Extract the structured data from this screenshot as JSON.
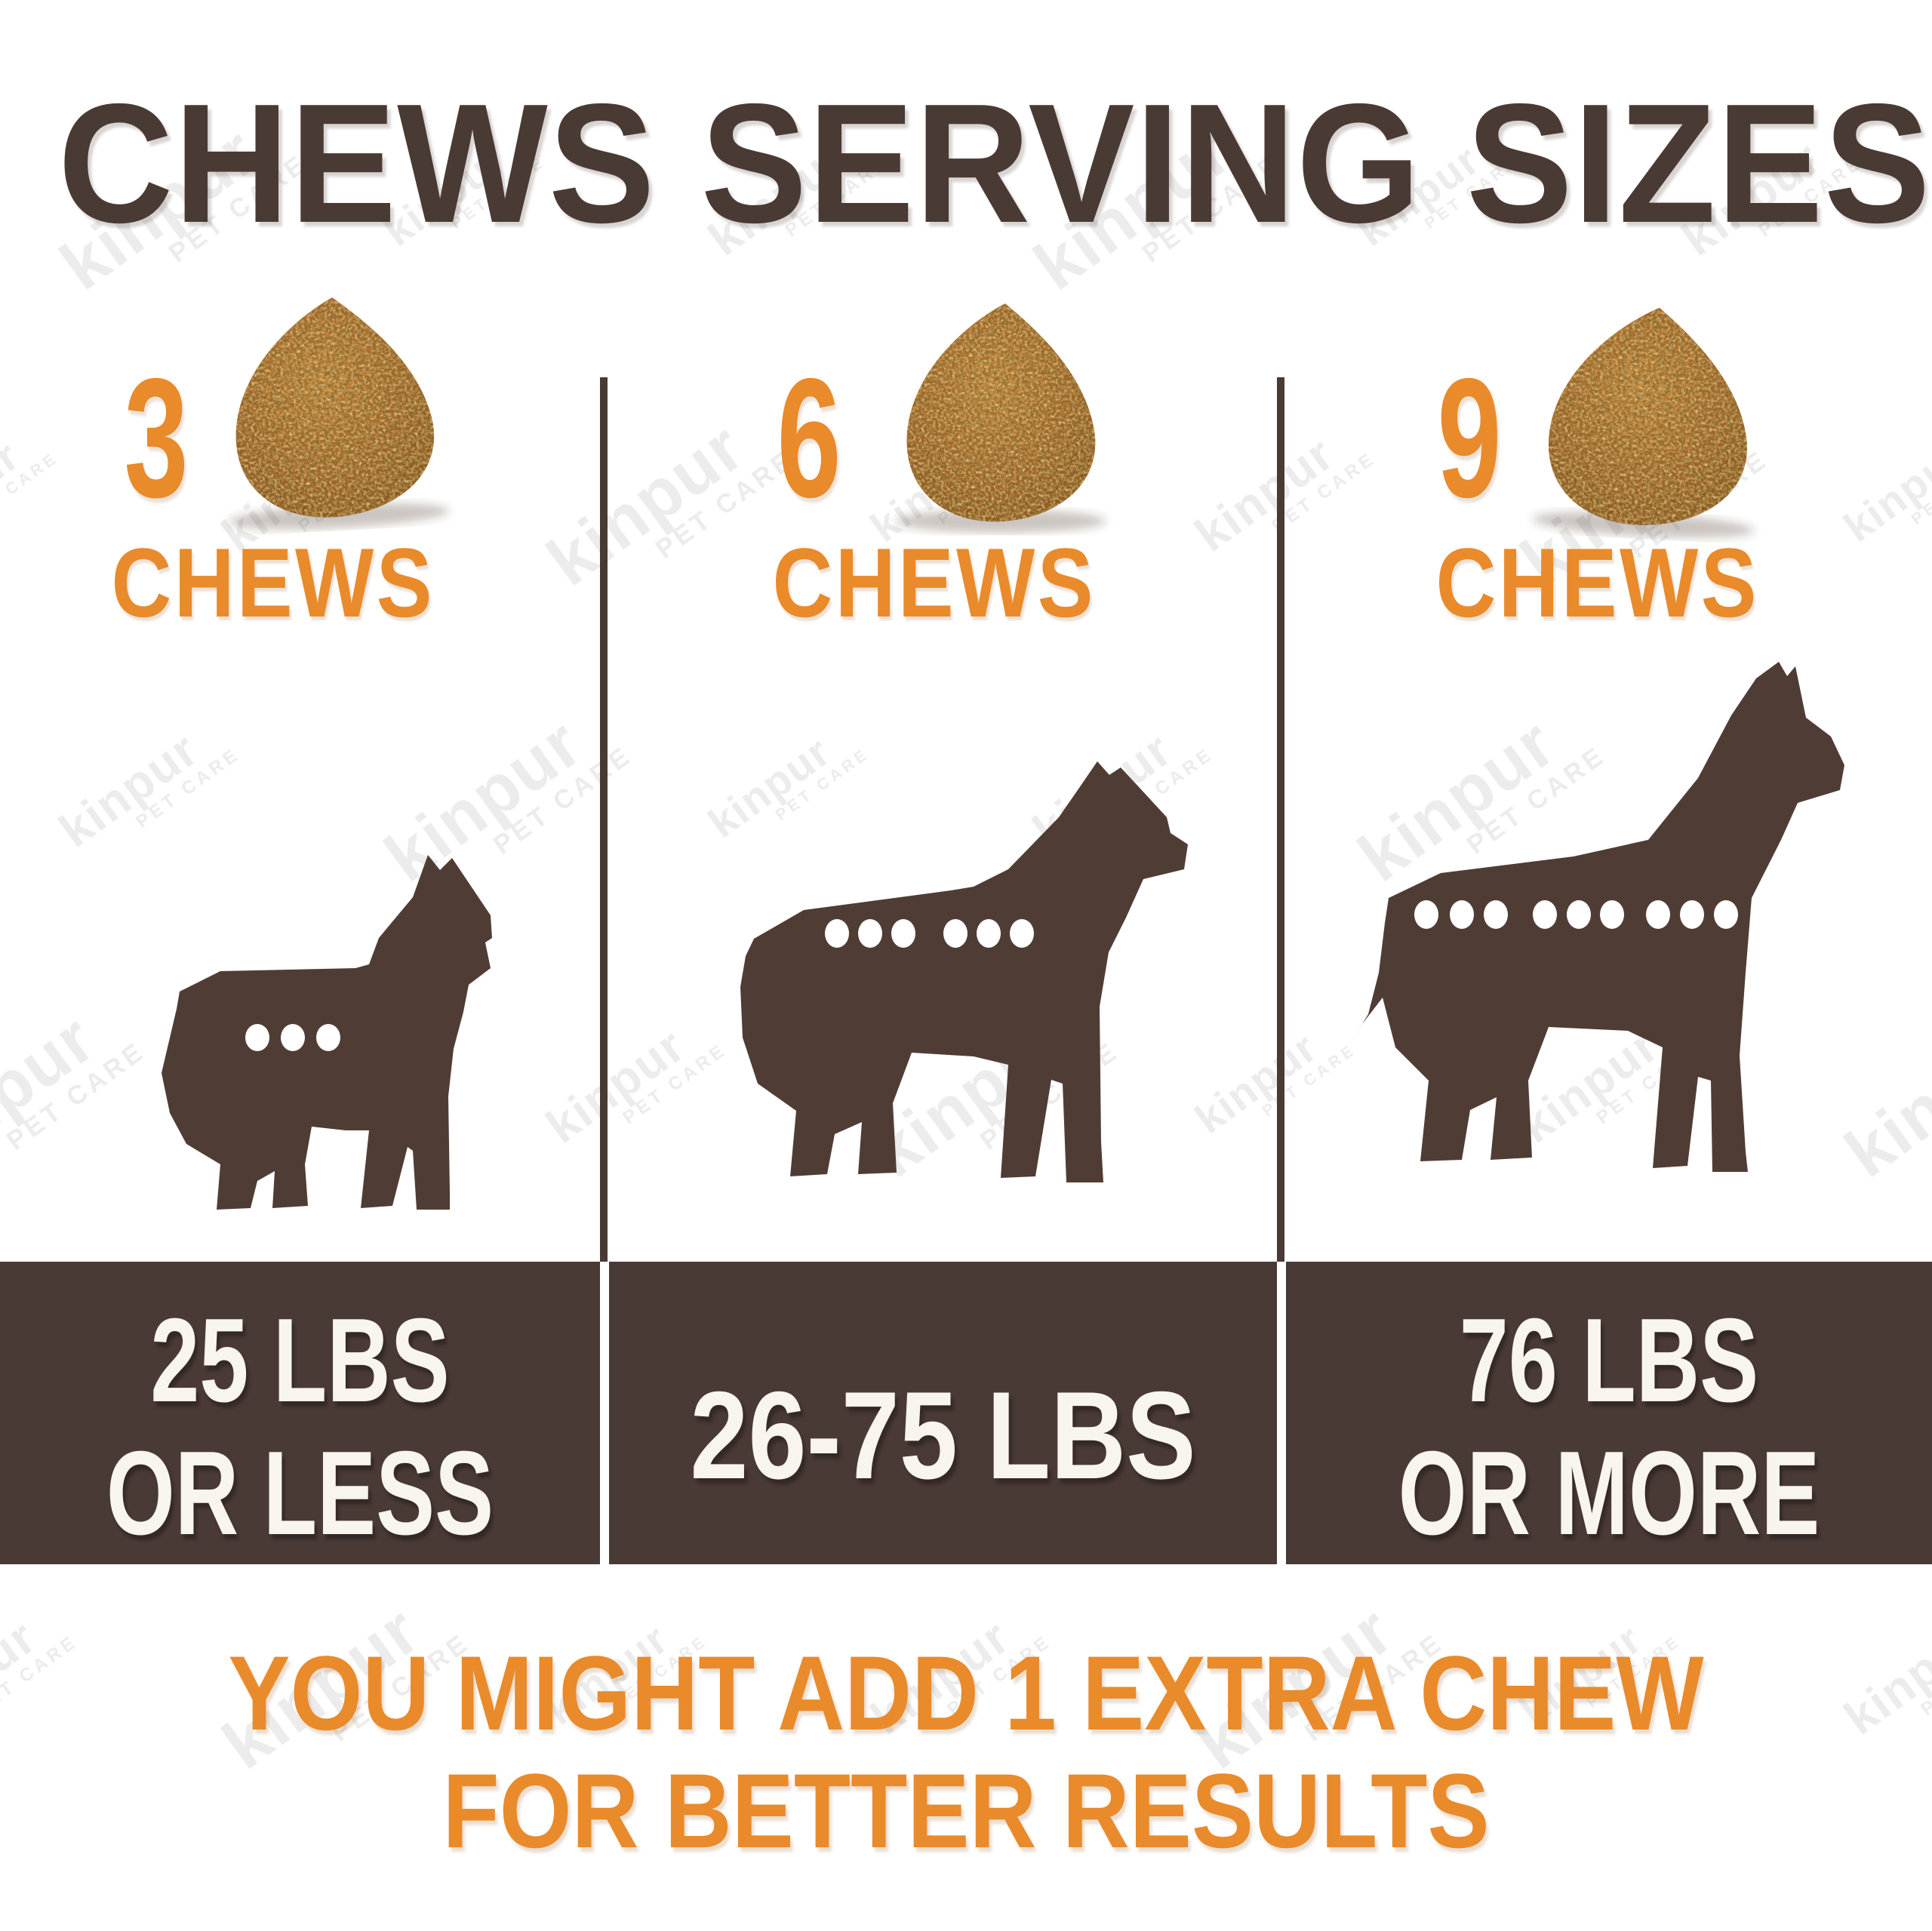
{
  "page": {
    "title": "CHEWS SERVING SIZES"
  },
  "watermark": {
    "brand": "kinpur",
    "sub": "PET CARE"
  },
  "columns": [
    {
      "count": "3",
      "unit": "CHEWS",
      "dots": 3,
      "dog": "french-bulldog",
      "weight_line1": "25 LBS",
      "weight_line2": "OR LESS"
    },
    {
      "count": "6",
      "unit": "CHEWS",
      "dots": 6,
      "dog": "boxer",
      "weight_line1": "26-75 LBS",
      "weight_line2": ""
    },
    {
      "count": "9",
      "unit": "CHEWS",
      "dots": 9,
      "dog": "great-dane",
      "weight_line1": "76 LBS",
      "weight_line2": "OR MORE"
    }
  ],
  "footnote": {
    "line1": "YOU MIGHT ADD 1 EXTRA CHEW",
    "line2": "FOR BETTER RESULTS"
  },
  "colors": {
    "brown": "#4a3a34",
    "band_brown": "#4a3a36",
    "dog_brown": "#4f3d35",
    "orange": "#e98a2b",
    "band_text": "#f8f4ee",
    "dot_white": "#ffffff",
    "watermark": "#ececec",
    "chew_mid": "#a86220"
  }
}
